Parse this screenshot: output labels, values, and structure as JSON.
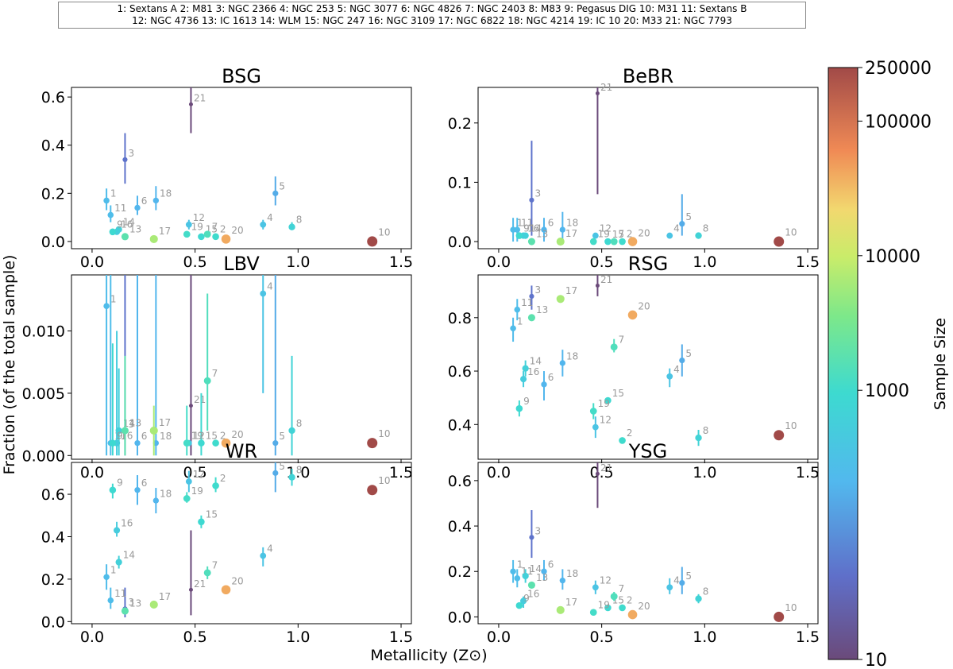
{
  "galaxy_key": {
    "line1": "1: Sextans A   2: M81   3: NGC 2366   4: NGC 253   5: NGC 3077   6: NGC 4826   7: NGC 2403   8: M83   9: Pegasus DIG   10: M31   11: Sextans B",
    "line2": "12: NGC 4736   13: IC 1613   14: WLM   15: NGC 247   16: NGC 3109   17: NGC 6822   18: NGC 4214   19: IC 10   20: M33   21: NGC 7793"
  },
  "xlabel": "Metallicity (Z⊙)",
  "ylabel": "Fraction (of the total sample)",
  "colorbar": {
    "label": "Sample Size",
    "scale": "log",
    "range": [
      10,
      250000
    ],
    "ticks": [
      "10",
      "1000",
      "10000",
      "100000",
      "250000"
    ],
    "colormap": "rainbow"
  },
  "galaxies": [
    {
      "id": 1,
      "Z": 0.07,
      "n": 250
    },
    {
      "id": 2,
      "Z": 0.6,
      "n": 1000
    },
    {
      "id": 3,
      "Z": 0.16,
      "n": 45
    },
    {
      "id": 4,
      "Z": 0.83,
      "n": 350
    },
    {
      "id": 5,
      "Z": 0.89,
      "n": 160
    },
    {
      "id": 6,
      "Z": 0.22,
      "n": 200
    },
    {
      "id": 7,
      "Z": 0.56,
      "n": 1400
    },
    {
      "id": 8,
      "Z": 0.97,
      "n": 700
    },
    {
      "id": 9,
      "Z": 0.1,
      "n": 900
    },
    {
      "id": 10,
      "Z": 1.36,
      "n": 250000
    },
    {
      "id": 11,
      "Z": 0.09,
      "n": 260
    },
    {
      "id": 12,
      "Z": 0.47,
      "n": 350
    },
    {
      "id": 13,
      "Z": 0.16,
      "n": 1800
    },
    {
      "id": 14,
      "Z": 0.13,
      "n": 600
    },
    {
      "id": 15,
      "Z": 0.53,
      "n": 900
    },
    {
      "id": 16,
      "Z": 0.12,
      "n": 500
    },
    {
      "id": 17,
      "Z": 0.3,
      "n": 6500
    },
    {
      "id": 18,
      "Z": 0.31,
      "n": 200
    },
    {
      "id": 19,
      "Z": 0.46,
      "n": 1100
    },
    {
      "id": 20,
      "Z": 0.65,
      "n": 40000
    },
    {
      "id": 21,
      "Z": 0.48,
      "n": 10
    }
  ],
  "chart_data": [
    {
      "type": "scatter",
      "title": "BSG",
      "xlim": [
        -0.1,
        1.55
      ],
      "ylim": [
        -0.03,
        0.64
      ],
      "xticks": [
        "0.0",
        "0.5",
        "1.0",
        "1.5"
      ],
      "yticks": [
        "0.0",
        "0.2",
        "0.4",
        "0.6"
      ],
      "points": [
        {
          "id": 1,
          "y": 0.17,
          "lo": 0.13,
          "hi": 0.22
        },
        {
          "id": 2,
          "y": 0.02
        },
        {
          "id": 3,
          "y": 0.34,
          "lo": 0.24,
          "hi": 0.45
        },
        {
          "id": 4,
          "y": 0.07,
          "lo": 0.05,
          "hi": 0.09
        },
        {
          "id": 5,
          "y": 0.2,
          "lo": 0.15,
          "hi": 0.27
        },
        {
          "id": 6,
          "y": 0.14,
          "lo": 0.11,
          "hi": 0.19
        },
        {
          "id": 7,
          "y": 0.03
        },
        {
          "id": 8,
          "y": 0.06,
          "lo": 0.05,
          "hi": 0.08
        },
        {
          "id": 9,
          "y": 0.04
        },
        {
          "id": 10,
          "y": 0.0
        },
        {
          "id": 11,
          "y": 0.11,
          "lo": 0.08,
          "hi": 0.15
        },
        {
          "id": 12,
          "y": 0.07,
          "lo": 0.05,
          "hi": 0.09
        },
        {
          "id": 13,
          "y": 0.02
        },
        {
          "id": 14,
          "y": 0.05
        },
        {
          "id": 15,
          "y": 0.02
        },
        {
          "id": 16,
          "y": 0.04
        },
        {
          "id": 17,
          "y": 0.01
        },
        {
          "id": 18,
          "y": 0.17,
          "lo": 0.13,
          "hi": 0.23
        },
        {
          "id": 19,
          "y": 0.03
        },
        {
          "id": 20,
          "y": 0.01
        },
        {
          "id": 21,
          "y": 0.57,
          "lo": 0.45,
          "hi": 0.7
        }
      ]
    },
    {
      "type": "scatter",
      "title": "BeBR",
      "xlim": [
        -0.1,
        1.55
      ],
      "ylim": [
        -0.012,
        0.26
      ],
      "xticks": [
        "0.0",
        "0.5",
        "1.0",
        "1.5"
      ],
      "yticks": [
        "0.0",
        "0.1",
        "0.2"
      ],
      "points": [
        {
          "id": 1,
          "y": 0.02,
          "lo": 0.0,
          "hi": 0.04
        },
        {
          "id": 2,
          "y": 0.0
        },
        {
          "id": 3,
          "y": 0.07,
          "lo": 0.01,
          "hi": 0.17
        },
        {
          "id": 4,
          "y": 0.01
        },
        {
          "id": 5,
          "y": 0.03,
          "lo": 0.01,
          "hi": 0.08
        },
        {
          "id": 6,
          "y": 0.02,
          "lo": 0.0,
          "hi": 0.04
        },
        {
          "id": 7,
          "y": 0.0
        },
        {
          "id": 8,
          "y": 0.01
        },
        {
          "id": 9,
          "y": 0.01
        },
        {
          "id": 10,
          "y": 0.0
        },
        {
          "id": 11,
          "y": 0.02,
          "lo": 0.0,
          "hi": 0.04
        },
        {
          "id": 12,
          "y": 0.01
        },
        {
          "id": 13,
          "y": 0.0
        },
        {
          "id": 14,
          "y": 0.01
        },
        {
          "id": 15,
          "y": 0.0
        },
        {
          "id": 16,
          "y": 0.01
        },
        {
          "id": 17,
          "y": 0.0
        },
        {
          "id": 18,
          "y": 0.02,
          "lo": 0.0,
          "hi": 0.05
        },
        {
          "id": 19,
          "y": 0.0
        },
        {
          "id": 20,
          "y": 0.0
        },
        {
          "id": 21,
          "y": 0.25,
          "lo": 0.08,
          "hi": 0.3
        }
      ]
    },
    {
      "type": "scatter",
      "title": "LBV",
      "xlim": [
        -0.1,
        1.55
      ],
      "ylim": [
        -0.0003,
        0.0145
      ],
      "xticks": [
        "0.0",
        "0.5",
        "1.0",
        "1.5"
      ],
      "yticks": [
        "0.000",
        "0.005",
        "0.010"
      ],
      "points": [
        {
          "id": 1,
          "y": 0.012,
          "lo": 0.0,
          "hi": 0.0145
        },
        {
          "id": 2,
          "y": 0.001
        },
        {
          "id": 3,
          "y": 0.002,
          "lo": 0.0,
          "hi": 0.0145
        },
        {
          "id": 4,
          "y": 0.013,
          "lo": 0.005,
          "hi": 0.0145
        },
        {
          "id": 5,
          "y": 0.001,
          "lo": 0.0,
          "hi": 0.0145
        },
        {
          "id": 6,
          "y": 0.001,
          "lo": 0.0,
          "hi": 0.0145
        },
        {
          "id": 7,
          "y": 0.006,
          "lo": 0.002,
          "hi": 0.013
        },
        {
          "id": 8,
          "y": 0.002,
          "lo": 0.0,
          "hi": 0.008
        },
        {
          "id": 9,
          "y": 0.001,
          "lo": 0.0,
          "hi": 0.009
        },
        {
          "id": 10,
          "y": 0.001
        },
        {
          "id": 11,
          "y": 0.001,
          "lo": 0.0,
          "hi": 0.0145
        },
        {
          "id": 12,
          "y": 0.001
        },
        {
          "id": 13,
          "y": 0.002,
          "lo": 0.0,
          "hi": 0.008
        },
        {
          "id": 14,
          "y": 0.002,
          "lo": 0.0,
          "hi": 0.007
        },
        {
          "id": 15,
          "y": 0.001,
          "lo": 0.0,
          "hi": 0.005
        },
        {
          "id": 16,
          "y": 0.001,
          "lo": 0.0,
          "hi": 0.01
        },
        {
          "id": 17,
          "y": 0.002,
          "lo": 0.0,
          "hi": 0.004
        },
        {
          "id": 18,
          "y": 0.001,
          "lo": 0.0,
          "hi": 0.0145
        },
        {
          "id": 19,
          "y": 0.001,
          "lo": 0.0,
          "hi": 0.004
        },
        {
          "id": 20,
          "y": 0.001
        },
        {
          "id": 21,
          "y": 0.004,
          "lo": 0.0,
          "hi": 0.0145
        },
        {
          "id": "16b",
          "y": 0.001,
          "label": false
        }
      ]
    },
    {
      "type": "scatter",
      "title": "RSG",
      "xlim": [
        -0.1,
        1.55
      ],
      "ylim": [
        0.27,
        0.96
      ],
      "xticks": [
        "0.0",
        "0.5",
        "1.0",
        "1.5"
      ],
      "yticks": [
        "0.4",
        "0.6",
        "0.8"
      ],
      "points": [
        {
          "id": 1,
          "y": 0.76,
          "lo": 0.71,
          "hi": 0.8
        },
        {
          "id": 2,
          "y": 0.34
        },
        {
          "id": 3,
          "y": 0.88,
          "lo": 0.83,
          "hi": 0.92
        },
        {
          "id": 4,
          "y": 0.58,
          "lo": 0.54,
          "hi": 0.61
        },
        {
          "id": 5,
          "y": 0.64,
          "lo": 0.58,
          "hi": 0.7
        },
        {
          "id": 6,
          "y": 0.55,
          "lo": 0.49,
          "hi": 0.6
        },
        {
          "id": 7,
          "y": 0.69,
          "lo": 0.67,
          "hi": 0.72
        },
        {
          "id": 8,
          "y": 0.35,
          "lo": 0.32,
          "hi": 0.38
        },
        {
          "id": 9,
          "y": 0.46,
          "lo": 0.43,
          "hi": 0.49
        },
        {
          "id": 10,
          "y": 0.36
        },
        {
          "id": 11,
          "y": 0.83,
          "lo": 0.79,
          "hi": 0.87
        },
        {
          "id": 12,
          "y": 0.39,
          "lo": 0.35,
          "hi": 0.43
        },
        {
          "id": 13,
          "y": 0.8
        },
        {
          "id": 14,
          "y": 0.61,
          "lo": 0.58,
          "hi": 0.64
        },
        {
          "id": 15,
          "y": 0.49
        },
        {
          "id": 16,
          "y": 0.57,
          "lo": 0.54,
          "hi": 0.6
        },
        {
          "id": 17,
          "y": 0.87
        },
        {
          "id": 18,
          "y": 0.63,
          "lo": 0.58,
          "hi": 0.68
        },
        {
          "id": 19,
          "y": 0.45,
          "lo": 0.42,
          "hi": 0.48
        },
        {
          "id": 20,
          "y": 0.81
        },
        {
          "id": 21,
          "y": 0.92,
          "lo": 0.88,
          "hi": 0.96
        }
      ]
    },
    {
      "type": "scatter",
      "title": "WR",
      "xlim": [
        -0.1,
        1.55
      ],
      "ylim": [
        -0.01,
        0.75
      ],
      "xticks": [
        "0.0",
        "0.5",
        "1.0",
        "1.5"
      ],
      "yticks": [
        "0.0",
        "0.2",
        "0.4",
        "0.6"
      ],
      "points": [
        {
          "id": 1,
          "y": 0.21,
          "lo": 0.15,
          "hi": 0.27
        },
        {
          "id": 2,
          "y": 0.64,
          "lo": 0.61,
          "hi": 0.68
        },
        {
          "id": 3,
          "y": 0.06,
          "lo": 0.02,
          "hi": 0.16
        },
        {
          "id": 4,
          "y": 0.31,
          "lo": 0.26,
          "hi": 0.35
        },
        {
          "id": 5,
          "y": 0.7,
          "lo": 0.61,
          "hi": 0.75
        },
        {
          "id": 6,
          "y": 0.62,
          "lo": 0.55,
          "hi": 0.69
        },
        {
          "id": 7,
          "y": 0.23,
          "lo": 0.2,
          "hi": 0.26
        },
        {
          "id": 8,
          "y": 0.68,
          "lo": 0.64,
          "hi": 0.72
        },
        {
          "id": 9,
          "y": 0.62,
          "lo": 0.58,
          "hi": 0.65
        },
        {
          "id": 10,
          "y": 0.62
        },
        {
          "id": 11,
          "y": 0.1,
          "lo": 0.06,
          "hi": 0.16
        },
        {
          "id": 12,
          "y": 0.66,
          "lo": 0.61,
          "hi": 0.71
        },
        {
          "id": 13,
          "y": 0.05
        },
        {
          "id": 14,
          "y": 0.28,
          "lo": 0.25,
          "hi": 0.31
        },
        {
          "id": 15,
          "y": 0.47,
          "lo": 0.44,
          "hi": 0.5
        },
        {
          "id": 16,
          "y": 0.43,
          "lo": 0.4,
          "hi": 0.47
        },
        {
          "id": 17,
          "y": 0.08
        },
        {
          "id": 18,
          "y": 0.57,
          "lo": 0.51,
          "hi": 0.63
        },
        {
          "id": 19,
          "y": 0.58,
          "lo": 0.56,
          "hi": 0.61
        },
        {
          "id": 20,
          "y": 0.15
        },
        {
          "id": 21,
          "y": 0.15,
          "lo": 0.03,
          "hi": 0.43
        }
      ]
    },
    {
      "type": "scatter",
      "title": "YSG",
      "xlim": [
        -0.1,
        1.55
      ],
      "ylim": [
        -0.03,
        0.68
      ],
      "xticks": [
        "0.0",
        "0.5",
        "1.0",
        "1.5"
      ],
      "yticks": [
        "0.0",
        "0.2",
        "0.4",
        "0.6"
      ],
      "points": [
        {
          "id": 1,
          "y": 0.2,
          "lo": 0.15,
          "hi": 0.25
        },
        {
          "id": 2,
          "y": 0.04
        },
        {
          "id": 3,
          "y": 0.35,
          "lo": 0.26,
          "hi": 0.47
        },
        {
          "id": 4,
          "y": 0.13,
          "lo": 0.1,
          "hi": 0.17
        },
        {
          "id": 5,
          "y": 0.15,
          "lo": 0.1,
          "hi": 0.22
        },
        {
          "id": 6,
          "y": 0.2,
          "lo": 0.16,
          "hi": 0.25
        },
        {
          "id": 7,
          "y": 0.09,
          "lo": 0.07,
          "hi": 0.11
        },
        {
          "id": 8,
          "y": 0.08,
          "lo": 0.06,
          "hi": 0.1
        },
        {
          "id": 9,
          "y": 0.05
        },
        {
          "id": 10,
          "y": 0.0
        },
        {
          "id": 11,
          "y": 0.17,
          "lo": 0.13,
          "hi": 0.21
        },
        {
          "id": 12,
          "y": 0.13,
          "lo": 0.1,
          "hi": 0.16
        },
        {
          "id": 13,
          "y": 0.14
        },
        {
          "id": 14,
          "y": 0.18,
          "lo": 0.15,
          "hi": 0.21
        },
        {
          "id": 15,
          "y": 0.04
        },
        {
          "id": 16,
          "y": 0.07,
          "lo": 0.04,
          "hi": 0.09
        },
        {
          "id": 17,
          "y": 0.03
        },
        {
          "id": 18,
          "y": 0.16,
          "lo": 0.12,
          "hi": 0.21
        },
        {
          "id": 19,
          "y": 0.02
        },
        {
          "id": 20,
          "y": 0.01
        },
        {
          "id": 21,
          "y": 0.63,
          "lo": 0.48,
          "hi": 0.68
        }
      ]
    }
  ]
}
